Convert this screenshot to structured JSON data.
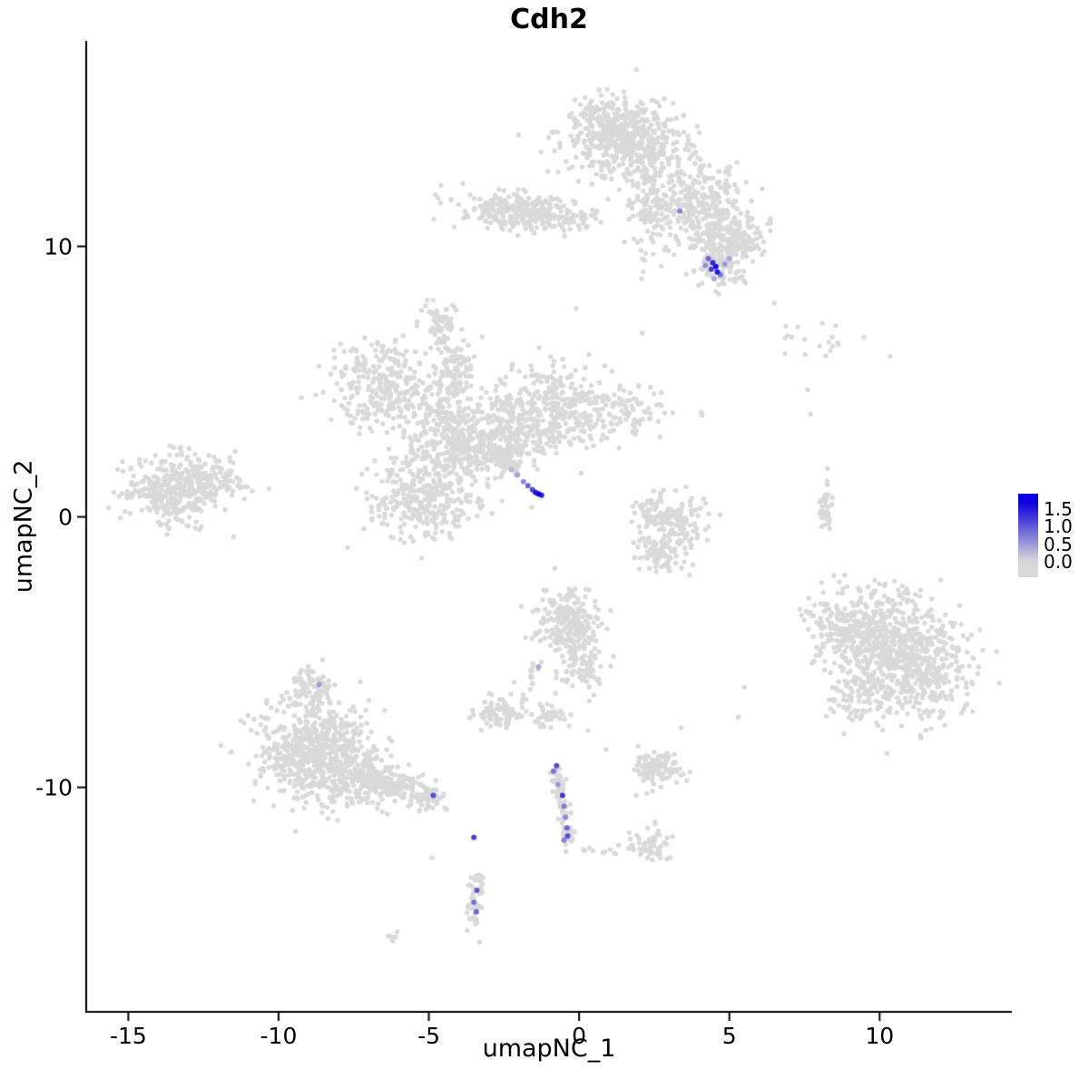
{
  "chart_data": {
    "type": "scatter",
    "title": "Cdh2",
    "xlabel": "umapNC_1",
    "ylabel": "umapNC_2",
    "xlim": [
      -16.4,
      14.4
    ],
    "ylim": [
      -18.3,
      17.6
    ],
    "xticks": [
      -15,
      -10,
      -5,
      0,
      5,
      10
    ],
    "yticks": [
      -10,
      0,
      10
    ],
    "grid": false,
    "background_point_color": "#D9D9D9",
    "point_color_low": "#D9D9D9",
    "point_color_high": "#0C00DC",
    "value_domain": [
      0,
      1.7
    ],
    "legend": {
      "position": "right",
      "ticks": [
        "1.5",
        "1.0",
        "0.5",
        "0.0"
      ],
      "tick_values": [
        1.5,
        1.0,
        0.5,
        0.0
      ],
      "range": [
        -0.45,
        1.95
      ]
    },
    "clusters": [
      {
        "cx": 1.6,
        "cy": 13.9,
        "sx": 0.95,
        "sy": 0.7,
        "n": 480
      },
      {
        "cx": 1.0,
        "cy": 14.7,
        "sx": 0.55,
        "sy": 0.4,
        "n": 100
      },
      {
        "cx": 2.3,
        "cy": 11.4,
        "sx": 0.35,
        "sy": 0.85,
        "n": 110
      },
      {
        "cx": 4.0,
        "cy": 11.6,
        "sx": 0.8,
        "sy": 0.8,
        "n": 280
      },
      {
        "cx": 4.7,
        "cy": 9.9,
        "sx": 0.5,
        "sy": 0.6,
        "n": 130
      },
      {
        "cx": 5.5,
        "cy": 10.6,
        "sx": 0.45,
        "sy": 0.5,
        "n": 70
      },
      {
        "cx": 4.6,
        "cy": 9.2,
        "sx": 0.4,
        "sy": 0.35,
        "n": 60
      },
      {
        "cx": -2.1,
        "cy": 11.3,
        "sx": 0.95,
        "sy": 0.35,
        "n": 260
      },
      {
        "cx": -0.3,
        "cy": 11.0,
        "sx": 0.5,
        "sy": 0.25,
        "n": 40
      },
      {
        "cx": -4.6,
        "cy": 7.2,
        "sx": 0.3,
        "sy": 0.4,
        "n": 55
      },
      {
        "cx": -6.5,
        "cy": 4.9,
        "sx": 0.75,
        "sy": 0.8,
        "n": 280
      },
      {
        "cx": -4.2,
        "cy": 5.2,
        "sx": 0.4,
        "sy": 0.7,
        "n": 120
      },
      {
        "cx": -4.0,
        "cy": 2.8,
        "sx": 0.95,
        "sy": 0.85,
        "n": 400
      },
      {
        "cx": -5.2,
        "cy": 0.7,
        "sx": 0.9,
        "sy": 0.75,
        "n": 300
      },
      {
        "cx": -0.9,
        "cy": 4.0,
        "sx": 0.85,
        "sy": 0.85,
        "n": 350
      },
      {
        "cx": 1.6,
        "cy": 3.9,
        "sx": 0.75,
        "sy": 0.45,
        "n": 80
      },
      {
        "cx": -2.4,
        "cy": 3.0,
        "sx": 0.5,
        "sy": 0.6,
        "n": 120
      },
      {
        "cx": -13.4,
        "cy": 1.1,
        "sx": 0.85,
        "sy": 0.7,
        "n": 360
      },
      {
        "cx": -12.2,
        "cy": 1.3,
        "sx": 0.5,
        "sy": 0.35,
        "n": 60
      },
      {
        "cx": 3.3,
        "cy": -0.2,
        "sx": 0.5,
        "sy": 0.55,
        "n": 120
      },
      {
        "cx": 2.7,
        "cy": -1.3,
        "sx": 0.45,
        "sy": 0.4,
        "n": 80
      },
      {
        "cx": 2.45,
        "cy": 0.15,
        "sx": 0.3,
        "sy": 0.4,
        "n": 50
      },
      {
        "cx": 8.6,
        "cy": 6.5,
        "sx": 1.0,
        "sy": 0.35,
        "n": 20
      },
      {
        "cx": 8.2,
        "cy": 0.3,
        "sx": 0.12,
        "sy": 0.55,
        "n": 40
      },
      {
        "cx": 10.0,
        "cy": -4.4,
        "sx": 1.0,
        "sy": 0.95,
        "n": 420
      },
      {
        "cx": 11.2,
        "cy": -5.6,
        "sx": 0.95,
        "sy": 0.9,
        "n": 380
      },
      {
        "cx": 8.6,
        "cy": -4.0,
        "sx": 0.5,
        "sy": 0.6,
        "n": 80
      },
      {
        "cx": 9.4,
        "cy": -6.6,
        "sx": 0.6,
        "sy": 0.5,
        "n": 90
      },
      {
        "cx": -0.4,
        "cy": -3.9,
        "sx": 0.5,
        "sy": 0.6,
        "n": 220
      },
      {
        "cx": 0.1,
        "cy": -5.3,
        "sx": 0.4,
        "sy": 0.6,
        "n": 100
      },
      {
        "cx": -2.6,
        "cy": -7.2,
        "sx": 0.4,
        "sy": 0.35,
        "n": 80
      },
      {
        "cx": -1.0,
        "cy": -7.4,
        "sx": 0.35,
        "sy": 0.25,
        "n": 35
      },
      {
        "cx": -8.7,
        "cy": -8.7,
        "sx": 1.0,
        "sy": 0.9,
        "n": 650
      },
      {
        "cx": -8.85,
        "cy": -6.3,
        "sx": 0.35,
        "sy": 0.35,
        "n": 70
      },
      {
        "cx": -7.2,
        "cy": -9.8,
        "sx": 0.7,
        "sy": 0.5,
        "n": 120
      },
      {
        "cx": 2.7,
        "cy": -9.3,
        "sx": 0.45,
        "sy": 0.3,
        "n": 110
      },
      {
        "cx": 2.4,
        "cy": -12.1,
        "sx": 0.35,
        "sy": 0.28,
        "n": 55
      },
      {
        "cx": -3.5,
        "cy": -14.3,
        "sx": 0.16,
        "sy": 0.45,
        "n": 38
      },
      {
        "cx": -6.1,
        "cy": -15.6,
        "sx": 0.18,
        "sy": 0.1,
        "n": 6
      }
    ],
    "arms": [
      {
        "x1": -2.75,
        "y1": 2.4,
        "x2": -2.1,
        "y2": 1.7,
        "n": 45,
        "spread": 0.12
      },
      {
        "x1": -7.0,
        "y1": -9.6,
        "x2": -4.8,
        "y2": -10.5,
        "n": 150,
        "spread": 0.28
      },
      {
        "x1": -0.75,
        "y1": -9.3,
        "x2": -0.5,
        "y2": -10.6,
        "n": 35,
        "spread": 0.1
      },
      {
        "x1": -0.5,
        "y1": -10.6,
        "x2": -0.35,
        "y2": -12.15,
        "n": 40,
        "spread": 0.1
      },
      {
        "x1": -0.15,
        "y1": -12.25,
        "x2": 1.9,
        "y2": -12.35,
        "n": 10,
        "spread": 0.12
      },
      {
        "x1": -4.45,
        "y1": 6.3,
        "x2": -4.6,
        "y2": 6.95,
        "n": 8,
        "spread": 0.08
      },
      {
        "x1": -1.3,
        "y1": -5.2,
        "x2": -1.95,
        "y2": -6.85,
        "n": 18,
        "spread": 0.1
      },
      {
        "x1": -3.3,
        "y1": -12.9,
        "x2": -3.45,
        "y2": -13.75,
        "n": 7,
        "spread": 0.07
      },
      {
        "x1": 5.2,
        "y1": 10.4,
        "x2": 5.9,
        "y2": 9.8,
        "n": 9,
        "spread": 0.2
      },
      {
        "x1": -11.9,
        "y1": 1.2,
        "x2": -11.4,
        "y2": 1.3,
        "n": 10,
        "spread": 0.15
      }
    ],
    "singles": [
      [
        7.6,
        4.7
      ],
      [
        7.7,
        3.8
      ],
      [
        6.5,
        7.9
      ],
      [
        -0.1,
        7.7
      ],
      [
        2.1,
        6.8
      ],
      [
        5.3,
        -7.4
      ],
      [
        5.5,
        -6.3
      ],
      [
        3.4,
        -7.8
      ],
      [
        0.9,
        -8.6
      ],
      [
        -4.9,
        -12.6
      ],
      [
        1.9,
        -10.3
      ],
      [
        0.3,
        -7.9
      ]
    ],
    "expression_points": [
      [
        3.35,
        11.3,
        0.7
      ],
      [
        4.3,
        9.55,
        0.9
      ],
      [
        4.45,
        9.4,
        1.4
      ],
      [
        4.55,
        9.25,
        1.6
      ],
      [
        4.4,
        9.15,
        1.2
      ],
      [
        4.6,
        9.05,
        1.5
      ],
      [
        4.7,
        8.95,
        0.8
      ],
      [
        4.85,
        9.35,
        0.5
      ],
      [
        5.0,
        9.55,
        0.4
      ],
      [
        4.2,
        9.3,
        0.6
      ],
      [
        4.5,
        8.8,
        0.35
      ],
      [
        -2.25,
        1.75,
        0.3
      ],
      [
        -2.05,
        1.55,
        0.45
      ],
      [
        -1.85,
        1.3,
        0.6
      ],
      [
        -1.7,
        1.15,
        0.9
      ],
      [
        -1.55,
        1.0,
        1.2
      ],
      [
        -1.45,
        0.9,
        1.5
      ],
      [
        -1.35,
        0.85,
        1.7
      ],
      [
        -1.25,
        0.8,
        1.4
      ],
      [
        -0.75,
        -9.2,
        1.1
      ],
      [
        -0.85,
        -9.4,
        0.8
      ],
      [
        -0.7,
        -9.9,
        0.5
      ],
      [
        -0.55,
        -10.3,
        1.3
      ],
      [
        -0.5,
        -10.7,
        0.7
      ],
      [
        -0.45,
        -11.1,
        0.6
      ],
      [
        -0.4,
        -11.5,
        0.9
      ],
      [
        -0.38,
        -11.8,
        1.1
      ],
      [
        -0.5,
        -11.95,
        0.7
      ],
      [
        -3.5,
        -11.85,
        1.2
      ],
      [
        -4.85,
        -10.3,
        1.1
      ],
      [
        -3.4,
        -13.8,
        1.0
      ],
      [
        -3.5,
        -14.25,
        0.8
      ],
      [
        -3.42,
        -14.6,
        0.9
      ],
      [
        -8.65,
        -6.2,
        0.5
      ],
      [
        -1.35,
        -5.55,
        0.4
      ]
    ]
  }
}
